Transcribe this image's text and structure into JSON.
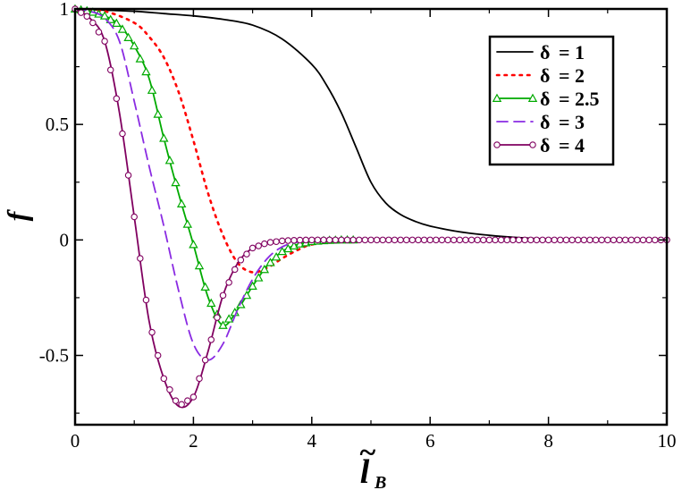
{
  "chart_data": {
    "type": "line",
    "xlabel": "l",
    "xlabel_sub": "B",
    "xlabel_accent": "~",
    "ylabel": "f",
    "xlim": [
      0,
      10
    ],
    "ylim": [
      -0.8,
      1.0
    ],
    "xticks": [
      0,
      2,
      4,
      6,
      8,
      10
    ],
    "xtick_labels": [
      "0",
      "2",
      "4",
      "6",
      "8",
      "10"
    ],
    "yticks": [
      -0.5,
      0,
      0.5,
      1
    ],
    "ytick_labels": [
      "-0.5",
      "0",
      "0.5",
      "1"
    ],
    "legend_position": "top-right",
    "series": [
      {
        "name": "δ = 1",
        "label_symbol": "δ",
        "label_text": "= 1",
        "color": "#000000",
        "style": "solid",
        "marker": "none",
        "x": [
          0,
          0.5,
          1,
          1.5,
          2,
          2.5,
          3,
          3.5,
          4,
          4.25,
          4.5,
          4.75,
          5,
          5.25,
          5.5,
          5.75,
          6,
          6.5,
          7,
          7.5,
          8,
          8.5,
          9,
          9.5,
          10
        ],
        "y": [
          1.0,
          0.995,
          0.99,
          0.98,
          0.97,
          0.955,
          0.93,
          0.87,
          0.76,
          0.67,
          0.55,
          0.4,
          0.25,
          0.16,
          0.11,
          0.08,
          0.06,
          0.035,
          0.02,
          0.01,
          0.004,
          0.004,
          0.002,
          0.0,
          0.0
        ]
      },
      {
        "name": "δ = 2",
        "label_symbol": "δ",
        "label_text": "= 2",
        "color": "#ff0000",
        "style": "dotted",
        "marker": "none",
        "x": [
          0,
          0.5,
          1,
          1.25,
          1.5,
          1.75,
          2,
          2.25,
          2.5,
          2.75,
          3,
          3.25,
          3.5,
          3.75,
          4,
          4.5,
          5,
          6,
          8,
          10
        ],
        "y": [
          1.0,
          0.99,
          0.94,
          0.88,
          0.79,
          0.64,
          0.43,
          0.2,
          0.02,
          -0.1,
          -0.14,
          -0.12,
          -0.08,
          -0.045,
          -0.02,
          -0.005,
          0.0,
          0.0,
          0.0,
          0.0
        ]
      },
      {
        "name": "δ = 2.5",
        "label_symbol": "δ",
        "label_text": "= 2.5",
        "color": "#00aa00",
        "style": "solid",
        "marker": "triangle",
        "x": [
          0,
          0.25,
          0.5,
          0.75,
          1,
          1.25,
          1.5,
          1.75,
          2,
          2.25,
          2.5,
          2.75,
          3,
          3.25,
          3.5,
          3.75,
          4,
          4.25,
          4.5,
          5
        ],
        "y": [
          1.0,
          0.99,
          0.97,
          0.93,
          0.84,
          0.7,
          0.44,
          0.2,
          -0.02,
          -0.25,
          -0.37,
          -0.3,
          -0.2,
          -0.11,
          -0.05,
          -0.02,
          -0.007,
          -0.002,
          0.0,
          0.0
        ]
      },
      {
        "name": "δ = 3",
        "label_symbol": "δ",
        "label_text": "= 3",
        "color": "#8a2be2",
        "style": "dashed",
        "marker": "none",
        "x": [
          0,
          0.25,
          0.5,
          0.75,
          1,
          1.25,
          1.5,
          1.75,
          2,
          2.25,
          2.5,
          2.75,
          3,
          3.25,
          3.5,
          3.75,
          4,
          4.5,
          5,
          6,
          8,
          10
        ],
        "y": [
          1.0,
          0.99,
          0.96,
          0.86,
          0.6,
          0.32,
          0.06,
          -0.22,
          -0.45,
          -0.52,
          -0.45,
          -0.3,
          -0.17,
          -0.08,
          -0.03,
          -0.01,
          -0.003,
          0.0,
          0.0,
          0.0,
          0.0,
          0.0
        ]
      },
      {
        "name": "δ = 4",
        "label_symbol": "δ",
        "label_text": "= 4",
        "color": "#800060",
        "style": "solid",
        "marker": "circle",
        "x": [
          0,
          0.25,
          0.5,
          0.75,
          1,
          1.25,
          1.5,
          1.75,
          2,
          2.25,
          2.5,
          2.75,
          3,
          3.25,
          3.5,
          3.75,
          4,
          4.25,
          4.5,
          5
        ],
        "y": [
          1.0,
          0.96,
          0.86,
          0.55,
          0.1,
          -0.35,
          -0.6,
          -0.72,
          -0.68,
          -0.48,
          -0.24,
          -0.1,
          -0.035,
          -0.012,
          -0.004,
          -0.001,
          0.0,
          0.0,
          0.0,
          0.0
        ]
      }
    ]
  }
}
